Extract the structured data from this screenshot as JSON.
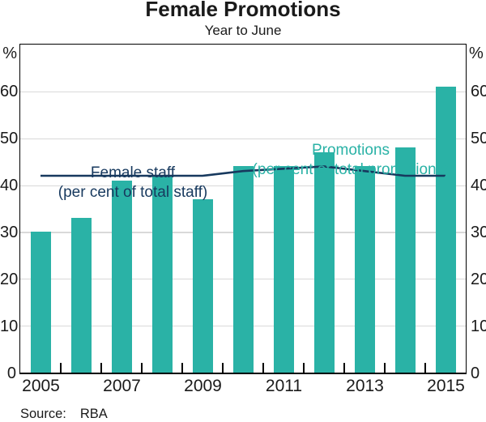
{
  "title": "Female Promotions",
  "subtitle": "Year to June",
  "unit_left": "%",
  "unit_right": "%",
  "labels": {
    "promotions_line1": "Promotions",
    "promotions_line2": "(per cent of total promotions)",
    "female_staff_line1": "Female staff",
    "female_staff_line2": "(per cent of total staff)"
  },
  "source": {
    "label": "Source:",
    "value": "RBA"
  },
  "colors": {
    "bar_teal": "#2ab2a6",
    "line_navy": "#17395e",
    "grid": "#d9d9d9",
    "frame": "#000000",
    "text": "#1a1a1a"
  },
  "chart_data": {
    "type": "bar",
    "title": "Female Promotions",
    "subtitle": "Year to June",
    "categories": [
      2005,
      2006,
      2007,
      2008,
      2009,
      2010,
      2011,
      2012,
      2013,
      2014,
      2015
    ],
    "series": [
      {
        "name": "Promotions (per cent of total promotions)",
        "type": "bar",
        "color": "#2ab2a6",
        "values": [
          30,
          33,
          41,
          42,
          37,
          44,
          44,
          47,
          44,
          48,
          61
        ]
      },
      {
        "name": "Female staff (per cent of total staff)",
        "type": "line",
        "color": "#17395e",
        "values": [
          42,
          42,
          42,
          42,
          42,
          43,
          43.5,
          44,
          43,
          42,
          42
        ]
      }
    ],
    "ylim": [
      0,
      70
    ],
    "yticks": [
      0,
      10,
      20,
      30,
      40,
      50,
      60
    ],
    "ylabel": "%",
    "xtick_labels": [
      "2005",
      "2007",
      "2009",
      "2011",
      "2013",
      "2015"
    ],
    "grid": true,
    "legend_position": "inside-plot annotations",
    "source": "RBA"
  }
}
